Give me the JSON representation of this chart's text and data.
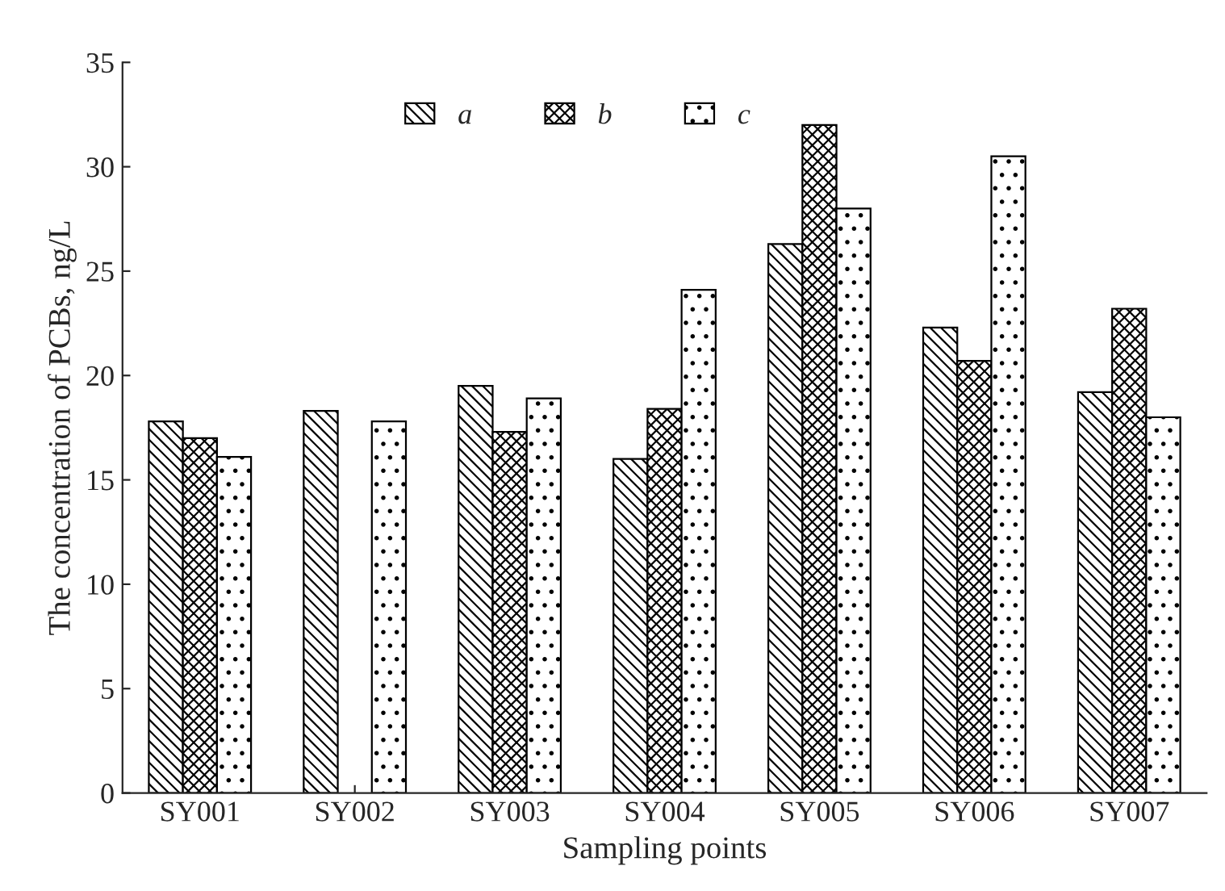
{
  "chart_data": {
    "type": "bar",
    "xlabel": "Sampling points",
    "ylabel": "The concentration of PCBs, ng/L",
    "categories": [
      "SY001",
      "SY002",
      "SY003",
      "SY004",
      "SY005",
      "SY006",
      "SY007"
    ],
    "series": [
      {
        "name": "a",
        "color": "#000000",
        "values": [
          17.8,
          18.3,
          19.5,
          16.0,
          26.3,
          22.3,
          19.2
        ]
      },
      {
        "name": "b",
        "color": "#000000",
        "values": [
          17.0,
          null,
          17.3,
          18.4,
          32.0,
          20.7,
          23.2
        ]
      },
      {
        "name": "c",
        "color": "#000000",
        "values": [
          16.1,
          17.8,
          18.9,
          24.1,
          28.0,
          30.5,
          18.0
        ]
      }
    ],
    "ylim": [
      0,
      35
    ],
    "yticks": [
      0,
      5,
      10,
      15,
      20,
      25,
      30,
      35
    ],
    "grid": false,
    "legend": "top"
  }
}
